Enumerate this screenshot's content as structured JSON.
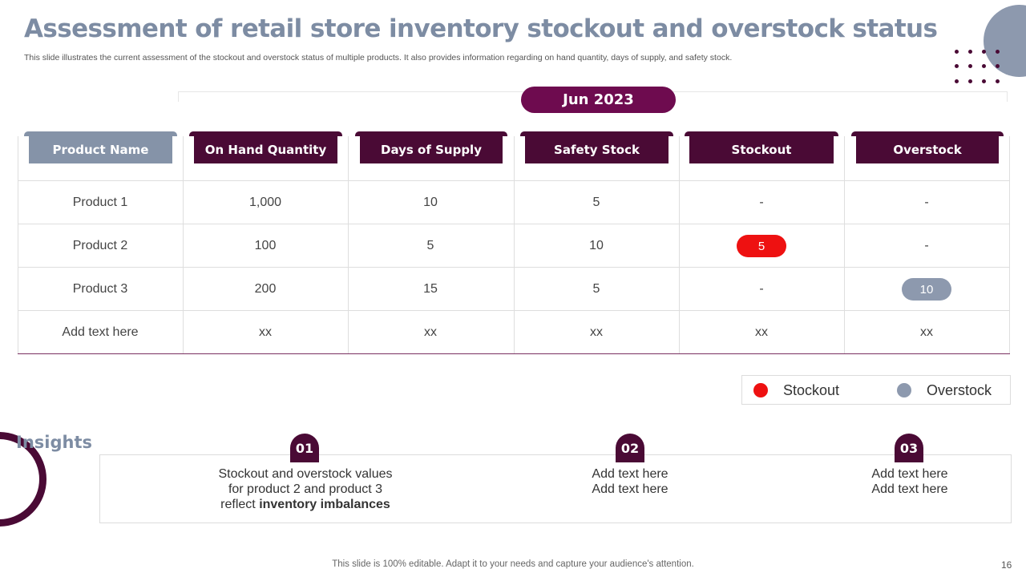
{
  "title": "Assessment of retail store inventory stockout and overstock status",
  "subtitle": "This slide illustrates the current assessment of the stockout and overstock status of multiple products. It also provides information regarding on hand quantity, days of supply, and safety stock.",
  "period": "Jun 2023",
  "colors": {
    "title": "#7d8ca3",
    "dark": "#4a0a35",
    "pill": "#6e0b4f",
    "stockout": "#ee1111",
    "overstock": "#8d99ae"
  },
  "table": {
    "headers": [
      "Product Name",
      "On Hand Quantity",
      "Days of Supply",
      "Safety Stock",
      "Stockout",
      "Overstock"
    ],
    "rows": [
      [
        "Product 1",
        "1,000",
        "10",
        "5",
        "-",
        "-"
      ],
      [
        "Product 2",
        "100",
        "5",
        "10",
        "5",
        "-"
      ],
      [
        "Product 3",
        "200",
        "15",
        "5",
        "-",
        "10"
      ],
      [
        "Add text here",
        "xx",
        "xx",
        "xx",
        "xx",
        "xx"
      ]
    ]
  },
  "legend": {
    "stockout": "Stockout",
    "overstock": "Overstock"
  },
  "insights": {
    "title": "Insights",
    "items": [
      {
        "num": "01",
        "line1": "Stockout and overstock values",
        "line2": "for product 2 and product 3",
        "line3_prefix": "reflect ",
        "line3_bold": "inventory imbalances"
      },
      {
        "num": "02",
        "line1": "Add text here",
        "line2": "Add text here"
      },
      {
        "num": "03",
        "line1": "Add text here",
        "line2": "Add text here"
      }
    ]
  },
  "footer": "This slide is 100% editable. Adapt it to your needs and capture your audience's attention.",
  "page_number": "16"
}
